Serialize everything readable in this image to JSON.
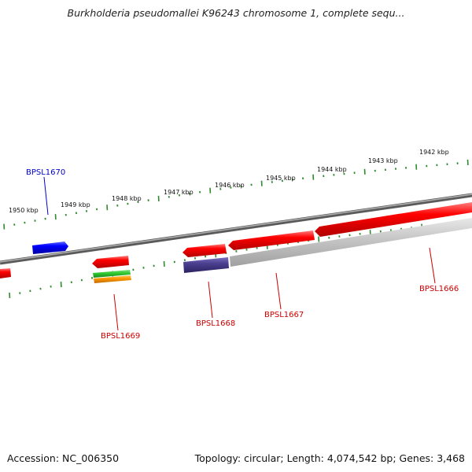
{
  "title": "Burkholderia pseudomallei K96243 chromosome 1, complete sequ...",
  "footer": {
    "accession": "Accession: NC_006350",
    "topology": "Topology: circular; Length: 4,074,542 bp; Genes: 3,468"
  },
  "ticks": [
    "1950 kbp",
    "1949 kbp",
    "1948 kbp",
    "1947 kbp",
    "1946 kbp",
    "1945 kbp",
    "1944 kbp",
    "1943 kbp",
    "1942 kbp"
  ],
  "genes": [
    {
      "label": "BPSL1670",
      "strand": "forward",
      "color": "#0000ff"
    },
    {
      "label": "BPSL1669",
      "strand": "reverse",
      "color": "#cc0000"
    },
    {
      "label": "BPSL1668",
      "strand": "reverse",
      "color": "#cc0000"
    },
    {
      "label": "BPSL1667",
      "strand": "reverse",
      "color": "#cc0000"
    },
    {
      "label": "BPSL1666",
      "strand": "reverse",
      "color": "#cc0000"
    }
  ],
  "colors": {
    "backbone": "#808080",
    "tick": "#2e8b2e",
    "forward_gene": "#0000ff",
    "reverse_gene": "#ff0000",
    "gene_label_forward": "#0000cc",
    "gene_label_reverse": "#cc0000",
    "feature_green": "#33cc33",
    "feature_orange": "#ff9900",
    "feature_purple": "#4a3f8f",
    "feature_grey": "#c8c8c8"
  }
}
